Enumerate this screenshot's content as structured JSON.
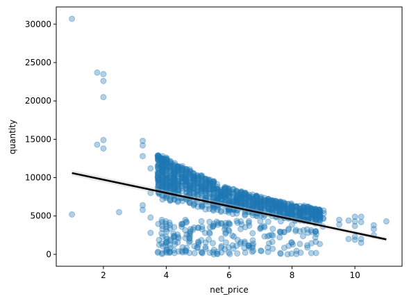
{
  "chart_data": {
    "type": "scatter",
    "title": "",
    "xlabel": "net_price",
    "ylabel": "quantity",
    "xlim": [
      0.5,
      11.5
    ],
    "ylim": [
      -1550,
      32250
    ],
    "xticks": [
      2,
      4,
      6,
      8,
      10
    ],
    "yticks": [
      0,
      5000,
      10000,
      15000,
      20000,
      25000,
      30000
    ],
    "grid": false,
    "legend": "none",
    "point_color": "#1f77b4",
    "point_alpha": 0.35,
    "regression_line": {
      "color": "#000000",
      "x": [
        1.0,
        11.0
      ],
      "y": [
        10600,
        1950
      ]
    },
    "outliers": [
      {
        "x": 1.0,
        "y": 30700
      },
      {
        "x": 1.0,
        "y": 5200
      },
      {
        "x": 1.8,
        "y": 23700
      },
      {
        "x": 2.0,
        "y": 23500
      },
      {
        "x": 2.0,
        "y": 22600
      },
      {
        "x": 2.0,
        "y": 20500
      },
      {
        "x": 1.8,
        "y": 14300
      },
      {
        "x": 2.0,
        "y": 14900
      },
      {
        "x": 2.0,
        "y": 13800
      },
      {
        "x": 2.5,
        "y": 5500
      },
      {
        "x": 3.25,
        "y": 14800
      },
      {
        "x": 3.25,
        "y": 14200
      },
      {
        "x": 3.25,
        "y": 12800
      },
      {
        "x": 3.25,
        "y": 6400
      },
      {
        "x": 3.25,
        "y": 5800
      },
      {
        "x": 3.5,
        "y": 11200
      },
      {
        "x": 3.5,
        "y": 8000
      },
      {
        "x": 3.5,
        "y": 4800
      },
      {
        "x": 3.5,
        "y": 2800
      },
      {
        "x": 9.5,
        "y": 4500
      },
      {
        "x": 9.5,
        "y": 3900
      },
      {
        "x": 9.8,
        "y": 4400
      },
      {
        "x": 9.8,
        "y": 2000
      },
      {
        "x": 10.0,
        "y": 4900
      },
      {
        "x": 10.0,
        "y": 4300
      },
      {
        "x": 10.0,
        "y": 3700
      },
      {
        "x": 10.0,
        "y": 2300
      },
      {
        "x": 10.0,
        "y": 1900
      },
      {
        "x": 10.2,
        "y": 4900
      },
      {
        "x": 10.2,
        "y": 4200
      },
      {
        "x": 10.2,
        "y": 2000
      },
      {
        "x": 10.2,
        "y": 1500
      },
      {
        "x": 10.6,
        "y": 3800
      },
      {
        "x": 10.6,
        "y": 3300
      },
      {
        "x": 10.6,
        "y": 2500
      },
      {
        "x": 11.0,
        "y": 4300
      }
    ],
    "dense_cluster": {
      "x_range": [
        3.75,
        9.0
      ],
      "upper_band": {
        "x": [
          3.75,
          4.5,
          5.5,
          6.5,
          7.5,
          8.5,
          9.0
        ],
        "y": [
          13000,
          11500,
          9500,
          8000,
          7000,
          6200,
          5700
        ]
      },
      "lower_band": {
        "x": [
          3.75,
          4.5,
          5.5,
          6.5,
          7.5,
          8.5,
          9.0
        ],
        "y": [
          7000,
          6500,
          5600,
          5000,
          4700,
          4300,
          4000
        ]
      },
      "sparse_low_y": [
        0,
        4500
      ],
      "count": 1400
    }
  }
}
